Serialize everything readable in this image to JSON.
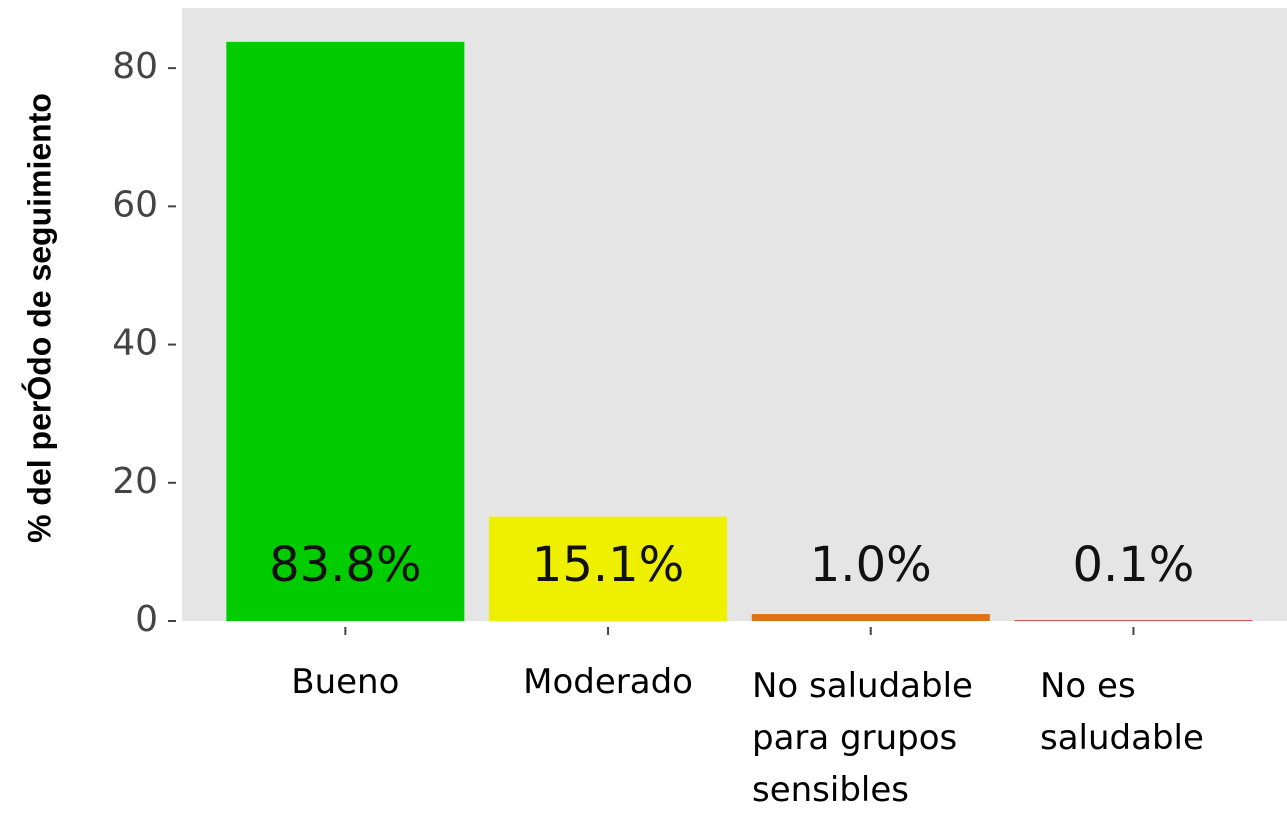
{
  "chart_data": {
    "type": "bar",
    "y_label": "% del perÓdo de seguimiento",
    "categories": [
      "Bueno",
      "Moderado",
      "No saludable para grupos sensibles",
      "No es saludable"
    ],
    "values": [
      83.8,
      15.1,
      1.0,
      0.1
    ],
    "value_labels": [
      "83.8%",
      "15.1%",
      "1.0%",
      "0.1%"
    ],
    "colors": [
      "#00cc00",
      "#eef000",
      "#e07010",
      "#d01010"
    ],
    "ylim": [
      0,
      88.7
    ],
    "yticks": [
      0,
      20,
      40,
      60,
      80
    ]
  }
}
